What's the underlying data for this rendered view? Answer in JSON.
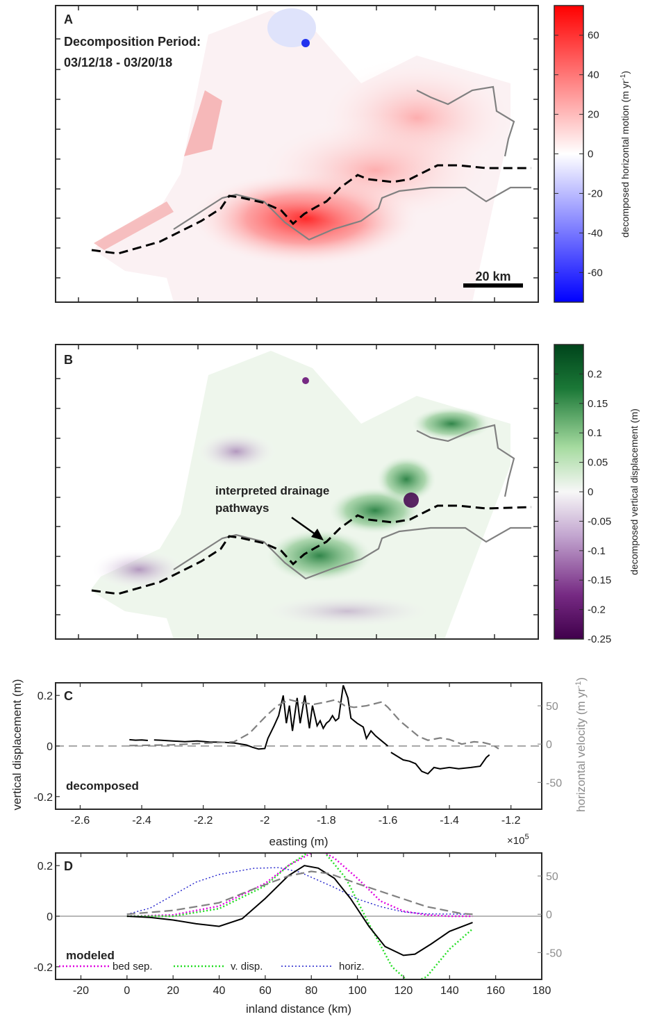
{
  "chart_data": [
    {
      "type": "heatmap",
      "panel_label": "A",
      "annotation": [
        "Decomposition Period:",
        "03/12/18 - 03/20/18"
      ],
      "scale_bar": "20 km",
      "colorbar": {
        "label": "decomposed horizontal motion (m yr",
        "label_sup": "-1",
        "label_end": ")",
        "range": [
          -75,
          75
        ],
        "ticks": [
          -60,
          -40,
          -20,
          0,
          20,
          40,
          60
        ],
        "tick_labels": [
          "-60",
          "-40",
          "-20",
          "0",
          "20",
          "40",
          "60"
        ],
        "colors": [
          "#0000ff",
          "#ffffff",
          "#ff0000"
        ]
      }
    },
    {
      "type": "heatmap",
      "panel_label": "B",
      "annotation": [
        "interpreted drainage",
        "pathways"
      ],
      "colorbar": {
        "label": "decomposed vertical displacement (m)",
        "range": [
          -0.25,
          0.25
        ],
        "ticks": [
          -0.25,
          -0.2,
          -0.15,
          -0.1,
          -0.05,
          0,
          0.05,
          0.1,
          0.15,
          0.2
        ],
        "tick_labels": [
          "-0.25",
          "-0.2",
          "-0.15",
          "-0.1",
          "-0.05",
          "0",
          "0.05",
          "0.1",
          "0.15",
          "0.2"
        ],
        "colors": [
          "#40004b",
          "#f7f7f7",
          "#00441b"
        ]
      }
    },
    {
      "type": "line",
      "panel_label": "C",
      "annotation": "decomposed",
      "xlabel": "easting (m)",
      "x_multiplier": "×10",
      "x_multiplier_exp": "5",
      "ylabel": "vertical displacement (m)",
      "ylabel_right": "horizontal velocity (m yr",
      "ylabel_right_sup": "-1",
      "ylabel_right_end": ")",
      "xlim": [
        -2.68,
        -1.1
      ],
      "ylim": [
        -0.25,
        0.25
      ],
      "ylim_right": [
        -85,
        80
      ],
      "xticks": [
        -2.6,
        -2.4,
        -2.2,
        -2,
        -1.8,
        -1.6,
        -1.4,
        -1.2
      ],
      "xtick_labels": [
        "-2.6",
        "-2.4",
        "-2.2",
        "-2",
        "-1.8",
        "-1.6",
        "-1.4",
        "-1.2"
      ],
      "yticks": [
        -0.2,
        0,
        0.2
      ],
      "ytick_labels": [
        "-0.2",
        "0",
        "0.2"
      ],
      "yticks_right": [
        -50,
        0,
        50
      ],
      "ytick_labels_right": [
        "-50",
        "0",
        "50"
      ],
      "series": [
        {
          "axis": "left",
          "color": "#000000",
          "style": "solid",
          "segments": [
            [
              [
                -2.44,
                0.025
              ],
              [
                -2.42,
                0.023
              ],
              [
                -2.4,
                0.024
              ],
              [
                -2.38,
                0.022
              ]
            ],
            [
              [
                -2.36,
                0.024
              ],
              [
                -2.34,
                0.023
              ],
              [
                -2.3,
                0.02
              ],
              [
                -2.26,
                0.017
              ],
              [
                -2.22,
                0.02
              ],
              [
                -2.18,
                0.016
              ],
              [
                -2.14,
                0.015
              ],
              [
                -2.1,
                0.012
              ],
              [
                -2.06,
                0.004
              ],
              [
                -2.04,
                -0.005
              ],
              [
                -2.02,
                -0.012
              ],
              [
                -2.0,
                -0.01
              ],
              [
                -1.99,
                0.03
              ],
              [
                -1.97,
                0.08
              ],
              [
                -1.955,
                0.12
              ],
              [
                -1.94,
                0.2
              ],
              [
                -1.93,
                0.09
              ],
              [
                -1.92,
                0.16
              ],
              [
                -1.91,
                0.06
              ],
              [
                -1.895,
                0.19
              ],
              [
                -1.885,
                0.09
              ],
              [
                -1.87,
                0.2
              ],
              [
                -1.855,
                0.07
              ],
              [
                -1.845,
                0.16
              ],
              [
                -1.83,
                0.08
              ],
              [
                -1.82,
                0.1
              ],
              [
                -1.81,
                0.07
              ],
              [
                -1.8,
                0.09
              ],
              [
                -1.79,
                0.1
              ],
              [
                -1.78,
                0.12
              ],
              [
                -1.77,
                0.1
              ],
              [
                -1.76,
                0.11
              ],
              [
                -1.745,
                0.24
              ],
              [
                -1.73,
                0.19
              ],
              [
                -1.72,
                0.11
              ],
              [
                -1.7,
                0.09
              ],
              [
                -1.68,
                0.075
              ],
              [
                -1.67,
                0.03
              ],
              [
                -1.655,
                0.06
              ],
              [
                -1.64,
                0.04
              ],
              [
                -1.62,
                0.02
              ],
              [
                -1.6,
                0.0
              ]
            ],
            [
              [
                -1.59,
                -0.025
              ],
              [
                -1.57,
                -0.04
              ],
              [
                -1.55,
                -0.055
              ],
              [
                -1.53,
                -0.06
              ],
              [
                -1.51,
                -0.07
              ],
              [
                -1.49,
                -0.1
              ],
              [
                -1.47,
                -0.11
              ],
              [
                -1.45,
                -0.085
              ],
              [
                -1.43,
                -0.09
              ],
              [
                -1.4,
                -0.085
              ],
              [
                -1.37,
                -0.09
              ],
              [
                -1.33,
                -0.085
              ],
              [
                -1.3,
                -0.08
              ],
              [
                -1.28,
                -0.045
              ],
              [
                -1.27,
                -0.035
              ]
            ]
          ]
        },
        {
          "axis": "right",
          "color": "#808080",
          "style": "dashed",
          "segments": [
            [
              [
                -2.44,
                -2
              ],
              [
                -2.3,
                -1
              ],
              [
                -2.2,
                1
              ],
              [
                -2.1,
                3
              ],
              [
                -2.05,
                14
              ],
              [
                -2.0,
                35
              ],
              [
                -1.96,
                50
              ],
              [
                -1.92,
                58
              ],
              [
                -1.88,
                54
              ],
              [
                -1.84,
                52
              ],
              [
                -1.8,
                55
              ],
              [
                -1.77,
                58
              ],
              [
                -1.74,
                50
              ],
              [
                -1.71,
                48
              ],
              [
                -1.67,
                50
              ],
              [
                -1.62,
                55
              ],
              [
                -1.6,
                48
              ],
              [
                -1.56,
                30
              ],
              [
                -1.53,
                20
              ],
              [
                -1.5,
                10
              ],
              [
                -1.47,
                5
              ],
              [
                -1.43,
                8
              ],
              [
                -1.4,
                6
              ],
              [
                -1.36,
                0
              ],
              [
                -1.32,
                3
              ],
              [
                -1.29,
                2
              ],
              [
                -1.26,
                -1
              ],
              [
                -1.24,
                -6
              ]
            ]
          ]
        }
      ]
    },
    {
      "type": "line",
      "panel_label": "D",
      "annotation": "modeled",
      "xlabel": "inland distance (km)",
      "xlim": [
        -31,
        180
      ],
      "ylim": [
        -0.25,
        0.25
      ],
      "ylim_right": [
        -85,
        80
      ],
      "xticks": [
        -20,
        0,
        20,
        40,
        60,
        80,
        100,
        120,
        140,
        160,
        180
      ],
      "xtick_labels": [
        "-20",
        "0",
        "20",
        "40",
        "60",
        "80",
        "100",
        "120",
        "140",
        "160",
        "180"
      ],
      "yticks": [
        -0.2,
        0,
        0.2
      ],
      "ytick_labels": [
        "-0.2",
        "0",
        "0.2"
      ],
      "yticks_right": [
        -50,
        0,
        50
      ],
      "ytick_labels_right": [
        "-50",
        "0",
        "50"
      ],
      "legend": [
        "bed sep.",
        "v. disp.",
        "horiz."
      ],
      "series": [
        {
          "name": "bed sep.",
          "axis": "left",
          "color": "#e000e0",
          "style": "dotted",
          "segments": [
            [
              [
                0,
                0
              ],
              [
                20,
                0.005
              ],
              [
                40,
                0.04
              ],
              [
                60,
                0.13
              ],
              [
                70,
                0.2
              ],
              [
                80,
                0.25
              ],
              [
                85,
                0.255
              ],
              [
                90,
                0.23
              ],
              [
                100,
                0.15
              ],
              [
                110,
                0.06
              ],
              [
                120,
                0.02
              ],
              [
                130,
                0.005
              ],
              [
                140,
                0.0
              ],
              [
                150,
                0.0
              ]
            ]
          ]
        },
        {
          "name": "v. disp.",
          "axis": "left",
          "color": "#22dd22",
          "style": "dotted",
          "segments": [
            [
              [
                0,
                0
              ],
              [
                20,
                0.0
              ],
              [
                40,
                0.03
              ],
              [
                60,
                0.12
              ],
              [
                70,
                0.2
              ],
              [
                80,
                0.26
              ],
              [
                86,
                0.25
              ],
              [
                95,
                0.15
              ],
              [
                105,
                -0.03
              ],
              [
                115,
                -0.2
              ],
              [
                123,
                -0.265
              ],
              [
                130,
                -0.24
              ],
              [
                140,
                -0.13
              ],
              [
                150,
                -0.05
              ]
            ]
          ]
        },
        {
          "name": "horiz.",
          "axis": "right",
          "color": "#2020cc",
          "style": "dotted",
          "segments": [
            [
              [
                0,
                0
              ],
              [
                10,
                8
              ],
              [
                20,
                25
              ],
              [
                30,
                42
              ],
              [
                40,
                52
              ],
              [
                55,
                60
              ],
              [
                66,
                61
              ],
              [
                75,
                55
              ],
              [
                90,
                35
              ],
              [
                100,
                20
              ],
              [
                110,
                10
              ],
              [
                120,
                3
              ],
              [
                130,
                0.5
              ],
              [
                150,
                0
              ]
            ]
          ]
        },
        {
          "axis": "left",
          "color": "#000000",
          "style": "solid",
          "segments": [
            [
              [
                0,
                0
              ],
              [
                10,
                -0.005
              ],
              [
                20,
                -0.015
              ],
              [
                30,
                -0.03
              ],
              [
                40,
                -0.04
              ],
              [
                50,
                -0.01
              ],
              [
                60,
                0.07
              ],
              [
                70,
                0.16
              ],
              [
                77,
                0.2
              ],
              [
                83,
                0.19
              ],
              [
                90,
                0.15
              ],
              [
                97,
                0.07
              ],
              [
                105,
                -0.04
              ],
              [
                112,
                -0.12
              ],
              [
                120,
                -0.155
              ],
              [
                125,
                -0.15
              ],
              [
                132,
                -0.11
              ],
              [
                140,
                -0.06
              ],
              [
                150,
                -0.025
              ]
            ]
          ]
        },
        {
          "axis": "right",
          "color": "#808080",
          "style": "dashed",
          "segments": [
            [
              [
                0,
                0
              ],
              [
                20,
                5
              ],
              [
                40,
                15
              ],
              [
                55,
                33
              ],
              [
                70,
                50
              ],
              [
                80,
                56
              ],
              [
                88,
                53
              ],
              [
                100,
                40
              ],
              [
                115,
                25
              ],
              [
                130,
                10
              ],
              [
                145,
                1
              ],
              [
                150,
                0
              ]
            ]
          ]
        }
      ]
    }
  ]
}
